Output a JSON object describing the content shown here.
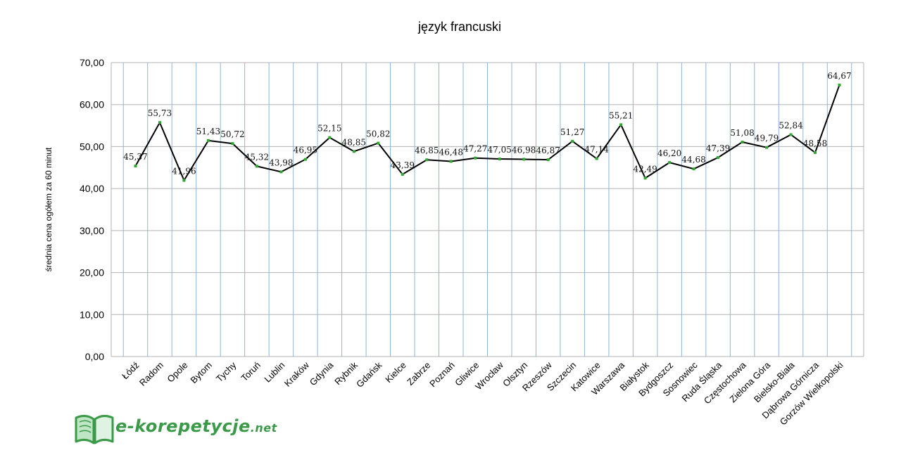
{
  "chart_data": {
    "type": "line",
    "title": "język francuski",
    "xlabel": "",
    "ylabel": "średnia cena ogółem za 60 minut",
    "ylim": [
      0,
      70
    ],
    "yticks": [
      "0,00",
      "10,00",
      "20,00",
      "30,00",
      "40,00",
      "50,00",
      "60,00",
      "70,00"
    ],
    "grid": "vertical",
    "legend": "none",
    "line_color": "#000000",
    "marker_color": "#2ea82e",
    "grid_color": "#8fb4d9",
    "categories": [
      "Łódź",
      "Radom",
      "Opole",
      "Bytom",
      "Tychy",
      "Toruń",
      "Lublin",
      "Kraków",
      "Gdynia",
      "Rybnik",
      "Gdańsk",
      "Kielce",
      "Zabrze",
      "Poznań",
      "Gliwice",
      "Wrocław",
      "Olsztyn",
      "Rzeszów",
      "Szczecin",
      "Katowice",
      "Warszawa",
      "Białystok",
      "Bydgoszcz",
      "Sosnowiec",
      "Ruda Śląska",
      "Częstochowa",
      "Zielona Góra",
      "Bielsko-Biała",
      "Dąbrowa Górnicza",
      "Gorzów Wielkopolski"
    ],
    "values": [
      45.37,
      55.73,
      41.96,
      51.43,
      50.72,
      45.32,
      43.98,
      46.95,
      52.15,
      48.85,
      50.82,
      43.39,
      46.85,
      46.48,
      47.27,
      47.05,
      46.98,
      46.87,
      51.27,
      47.14,
      55.21,
      42.49,
      46.2,
      44.68,
      47.39,
      51.08,
      49.79,
      52.84,
      48.58,
      64.67
    ],
    "value_labels": [
      "45,37",
      "55,73",
      "41,96",
      "51,43",
      "50,72",
      "45,32",
      "43,98",
      "46,95",
      "52,15",
      "48,85",
      "50,82",
      "43,39",
      "46,85",
      "46,48",
      "47,27",
      "47,05",
      "46,98",
      "46,87",
      "51,27",
      "47,14",
      "55,21",
      "42,49",
      "46,20",
      "44,68",
      "47,39",
      "51,08",
      "49,79",
      "52,84",
      "48,58",
      "64,67"
    ]
  },
  "logo": {
    "text": "e-korepetycje",
    "suffix": ".net",
    "color": "#3a9a48",
    "icon": "open-book-icon"
  }
}
